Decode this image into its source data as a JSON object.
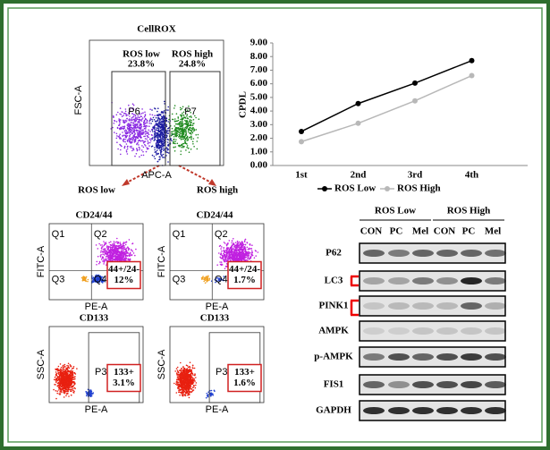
{
  "figure_a": {
    "title": "CellROX",
    "y_axis": "FSC-A",
    "x_axis": "APC-A",
    "gates": [
      {
        "name": "P6",
        "label": "ROS low",
        "percent": "23.8%"
      },
      {
        "name": "P7",
        "label": "ROS high",
        "percent": "24.8%"
      }
    ]
  },
  "chart_data": {
    "type": "line",
    "ylabel": "CPDL",
    "categories": [
      "1st",
      "2nd",
      "3rd",
      "4th"
    ],
    "series": [
      {
        "name": "ROS Low",
        "color": "#000000",
        "values": [
          2.5,
          4.55,
          6.05,
          7.7
        ]
      },
      {
        "name": "ROS High",
        "color": "#b8b8b8",
        "values": [
          1.75,
          3.1,
          4.75,
          6.6
        ]
      }
    ],
    "ylim": [
      0,
      9
    ],
    "yticks": [
      {
        "value": 0,
        "label": "0.00"
      },
      {
        "value": 1,
        "label": "1.00"
      },
      {
        "value": 2,
        "label": "2.00"
      },
      {
        "value": 3,
        "label": "3.00"
      },
      {
        "value": 4,
        "label": "4.00"
      },
      {
        "value": 5,
        "label": "5.00"
      },
      {
        "value": 6,
        "label": "6.00"
      },
      {
        "value": 7,
        "label": "7.00"
      },
      {
        "value": 8,
        "label": "8.00"
      },
      {
        "value": 9,
        "label": "9.00"
      }
    ],
    "grid": false,
    "legend": "bottom"
  },
  "figure_c": {
    "groups": [
      {
        "heading": "ROS low",
        "panels": [
          {
            "title": "CD24/44",
            "y_axis": "FITC-A",
            "x_axis": "PE-A",
            "quadrants": [
              "Q1",
              "Q2",
              "Q3",
              "Q4"
            ],
            "box": [
              "44+/24-",
              "12%"
            ]
          },
          {
            "title": "CD133",
            "y_axis": "SSC-A",
            "x_axis": "PE-A",
            "gate": "P3",
            "box": [
              "133+",
              "3.1%"
            ]
          }
        ]
      },
      {
        "heading": "ROS high",
        "panels": [
          {
            "title": "CD24/44",
            "y_axis": "FITC-A",
            "x_axis": "PE-A",
            "quadrants": [
              "Q1",
              "Q2",
              "Q3",
              "Q4"
            ],
            "box": [
              "44+/24-",
              "1.7%"
            ]
          },
          {
            "title": "CD133",
            "y_axis": "SSC-A",
            "x_axis": "PE-A",
            "gate": "P3",
            "box": [
              "133+",
              "1.6%"
            ]
          }
        ]
      }
    ]
  },
  "blot": {
    "groups": [
      "ROS Low",
      "ROS High"
    ],
    "lanes": [
      "CON",
      "PC",
      "Mel",
      "CON",
      "PC",
      "Mel"
    ],
    "rows": [
      {
        "label": "P62",
        "color": "#000000"
      },
      {
        "label": "LC3",
        "color": "#2e86c1"
      },
      {
        "label": "PINK1",
        "color": "#000000"
      },
      {
        "label": "AMPK",
        "color": "#000000"
      },
      {
        "label": "p-AMPK",
        "color": "#2e86c1"
      },
      {
        "label": "FIS1",
        "color": "#2e86c1"
      },
      {
        "label": "GAPDH",
        "color": "#000000"
      }
    ]
  }
}
